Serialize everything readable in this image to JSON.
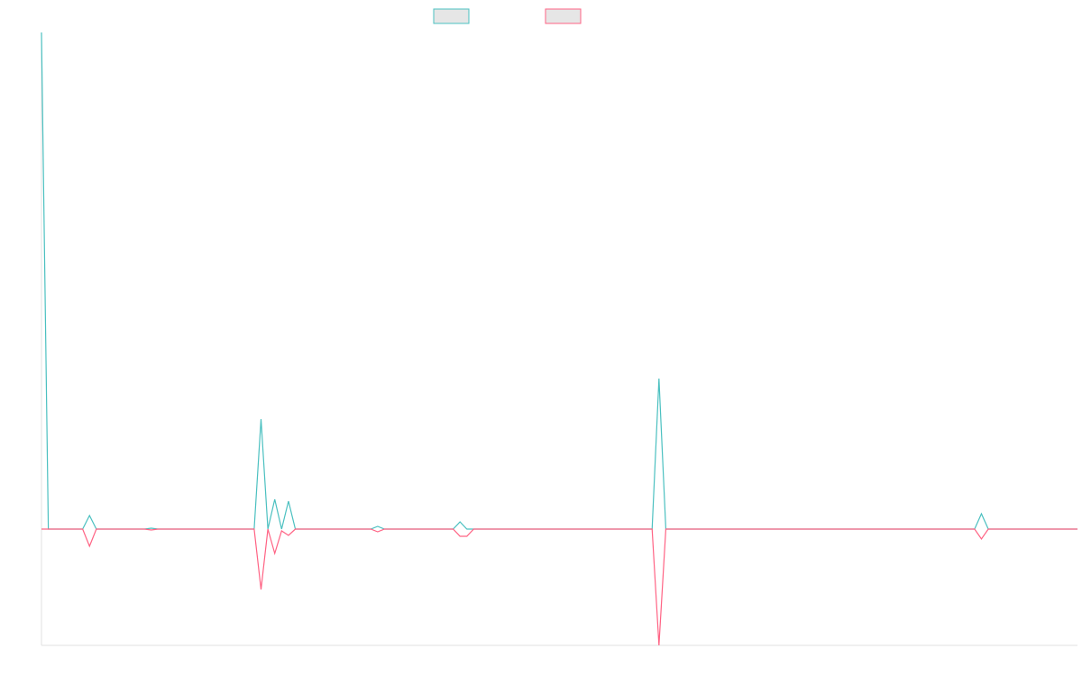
{
  "chart_data": {
    "type": "line",
    "x": [
      0,
      1,
      6,
      7,
      8,
      15,
      16,
      17,
      31,
      32,
      33,
      34,
      35,
      36,
      37,
      48,
      49,
      50,
      60,
      61,
      62,
      63,
      89,
      90,
      91,
      136,
      137,
      138,
      151
    ],
    "xlim": [
      0,
      151
    ],
    "ylim": [
      -129,
      551
    ],
    "series": [
      {
        "color": "#4bc0c0",
        "values": [
          551,
          0,
          0,
          15,
          0,
          0,
          1,
          0,
          0,
          122,
          0,
          33,
          0,
          31,
          0,
          0,
          3,
          0,
          0,
          8,
          0,
          0,
          0,
          167,
          0,
          0,
          17,
          0,
          0
        ]
      },
      {
        "color": "#ff6384",
        "values": [
          0,
          0,
          0,
          -19,
          0,
          0,
          -1,
          0,
          0,
          -67,
          0,
          -27,
          -2,
          -7,
          0,
          0,
          -3,
          0,
          0,
          -8,
          -8,
          0,
          0,
          -129,
          0,
          0,
          -11,
          0,
          0
        ]
      }
    ]
  }
}
